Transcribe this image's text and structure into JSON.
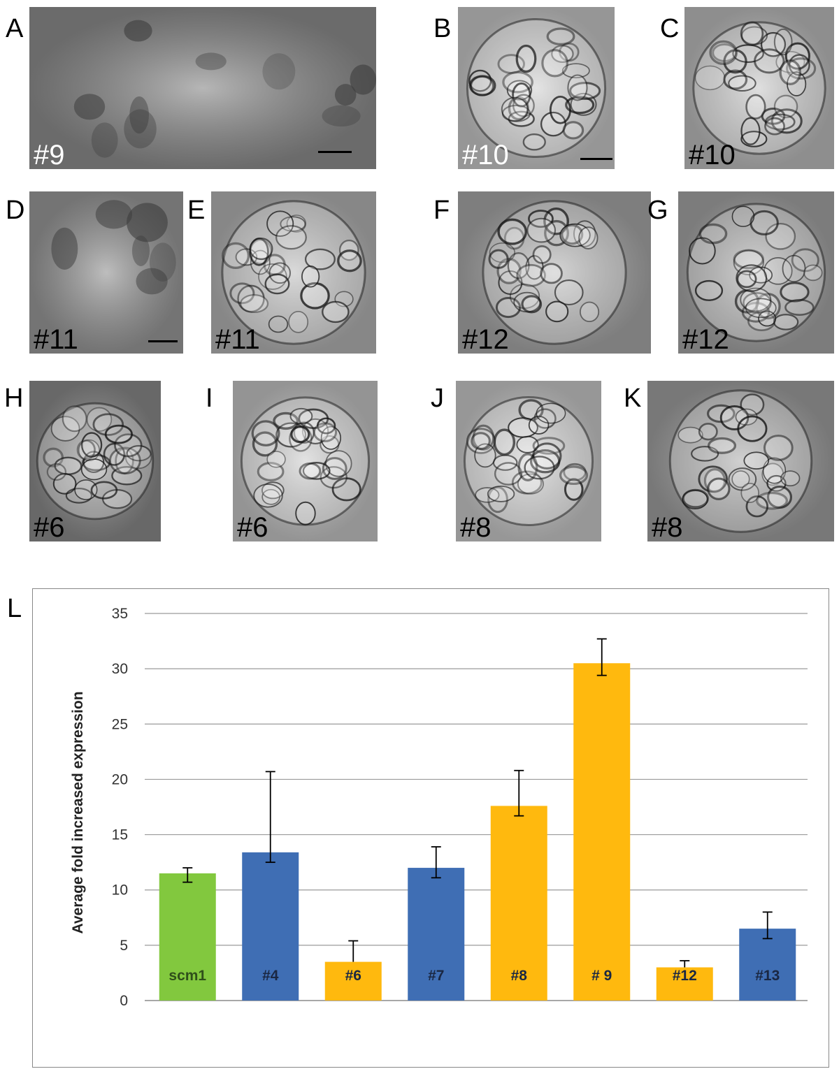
{
  "figure": {
    "panels": [
      {
        "letter": "A",
        "label": "#9",
        "label_color": "white",
        "tone": "#8f8f8f",
        "scalebar": true
      },
      {
        "letter": "B",
        "label": "#10",
        "label_color": "white",
        "tone": "#c8c8c8",
        "scalebar": true
      },
      {
        "letter": "C",
        "label": "#10",
        "label_color": "black",
        "tone": "#bdbdbd",
        "scalebar": false
      },
      {
        "letter": "D",
        "label": "#11",
        "label_color": "black",
        "tone": "#9a9a9a",
        "scalebar": true
      },
      {
        "letter": "E",
        "label": "#11",
        "label_color": "black",
        "tone": "#b4b4b4",
        "scalebar": false
      },
      {
        "letter": "F",
        "label": "#12",
        "label_color": "black",
        "tone": "#a8a8a8",
        "scalebar": false
      },
      {
        "letter": "G",
        "label": "#12",
        "label_color": "black",
        "tone": "#a5a5a5",
        "scalebar": false
      },
      {
        "letter": "H",
        "label": "#6",
        "label_color": "black",
        "tone": "#8a8a8a",
        "scalebar": false
      },
      {
        "letter": "I",
        "label": "#6",
        "label_color": "black",
        "tone": "#c5c5c5",
        "scalebar": false
      },
      {
        "letter": "J",
        "label": "#8",
        "label_color": "black",
        "tone": "#c9c9c9",
        "scalebar": false
      },
      {
        "letter": "K",
        "label": "#8",
        "label_color": "black",
        "tone": "#a0a0a0",
        "scalebar": false
      }
    ],
    "chart_letter": "L"
  },
  "chart_data": {
    "type": "bar",
    "categories": [
      "scm1",
      "#4",
      "#6",
      "#7",
      "#8",
      "# 9",
      "#12",
      "#13"
    ],
    "values": [
      11.5,
      13.4,
      3.5,
      12.0,
      17.6,
      30.5,
      3.0,
      6.5
    ],
    "error_upper": [
      0.5,
      7.3,
      1.9,
      1.9,
      3.2,
      2.2,
      0.6,
      1.5
    ],
    "error_lower": [
      0.8,
      0.9,
      0.0,
      0.9,
      0.9,
      1.1,
      0.0,
      0.9
    ],
    "colors": [
      "#82c83e",
      "#3f6eb4",
      "#ffb90e",
      "#3f6eb4",
      "#ffb90e",
      "#ffb90e",
      "#ffb90e",
      "#3f6eb4"
    ],
    "ylabel": "Average fold increased  expression",
    "xlabel": "",
    "ylim": [
      0,
      35
    ],
    "yticks": [
      "0",
      "5",
      "10",
      "15",
      "20",
      "25",
      "30",
      "35"
    ],
    "grid": true,
    "legend": "none"
  }
}
